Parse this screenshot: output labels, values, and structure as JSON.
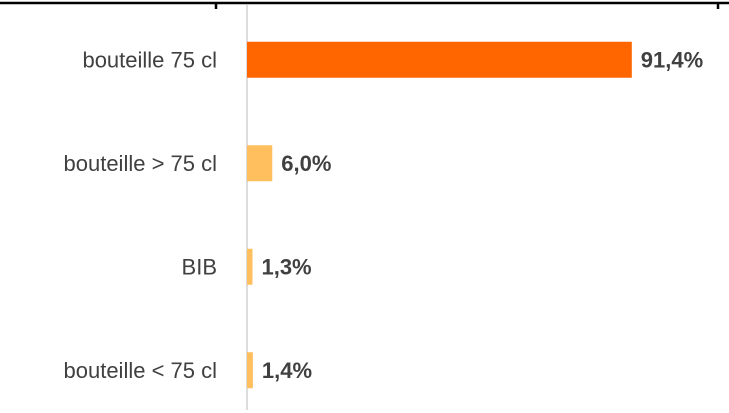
{
  "chart_data": {
    "type": "hbar",
    "categories": [
      "bouteille 75 cl",
      "bouteille > 75 cl",
      "BIB",
      "bouteille < 75 cl"
    ],
    "values": [
      91.4,
      6.0,
      1.3,
      1.4
    ],
    "value_labels": [
      "91,4%",
      "6,0%",
      "1,3%",
      "1,4%"
    ],
    "colors": [
      "#ff6600",
      "#ffbf5f",
      "#ffbf5f",
      "#ffbf5f"
    ],
    "xlim": [
      0,
      100
    ]
  }
}
